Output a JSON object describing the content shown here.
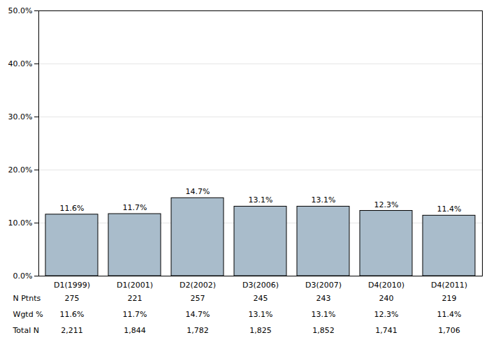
{
  "chart_data": {
    "type": "bar",
    "categories": [
      "D1(1999)",
      "D1(2001)",
      "D2(2002)",
      "D3(2006)",
      "D3(2007)",
      "D4(2010)",
      "D4(2011)"
    ],
    "values": [
      11.6,
      11.7,
      14.7,
      13.1,
      13.1,
      12.3,
      11.4
    ],
    "value_labels": [
      "11.6%",
      "11.7%",
      "14.7%",
      "13.1%",
      "13.1%",
      "12.3%",
      "11.4%"
    ],
    "data_labels": true,
    "color": "#a9bccb",
    "ylim": [
      0,
      50
    ],
    "yticks": [
      {
        "value": 0,
        "label": "0.0%"
      },
      {
        "value": 10,
        "label": "10.0%"
      },
      {
        "value": 20,
        "label": "20.0%"
      },
      {
        "value": 30,
        "label": "30.0%"
      },
      {
        "value": 40,
        "label": "40.0%"
      },
      {
        "value": 50,
        "label": "50.0%"
      }
    ],
    "grid": true,
    "table": {
      "rows": [
        {
          "label": "N Ptnts",
          "cells": [
            "275",
            "221",
            "257",
            "245",
            "243",
            "240",
            "219"
          ]
        },
        {
          "label": "Wgtd %",
          "cells": [
            "11.6%",
            "11.7%",
            "14.7%",
            "13.1%",
            "13.1%",
            "12.3%",
            "11.4%"
          ]
        },
        {
          "label": "Total N",
          "cells": [
            "2,211",
            "1,844",
            "1,782",
            "1,825",
            "1,852",
            "1,741",
            "1,706"
          ]
        }
      ]
    }
  }
}
